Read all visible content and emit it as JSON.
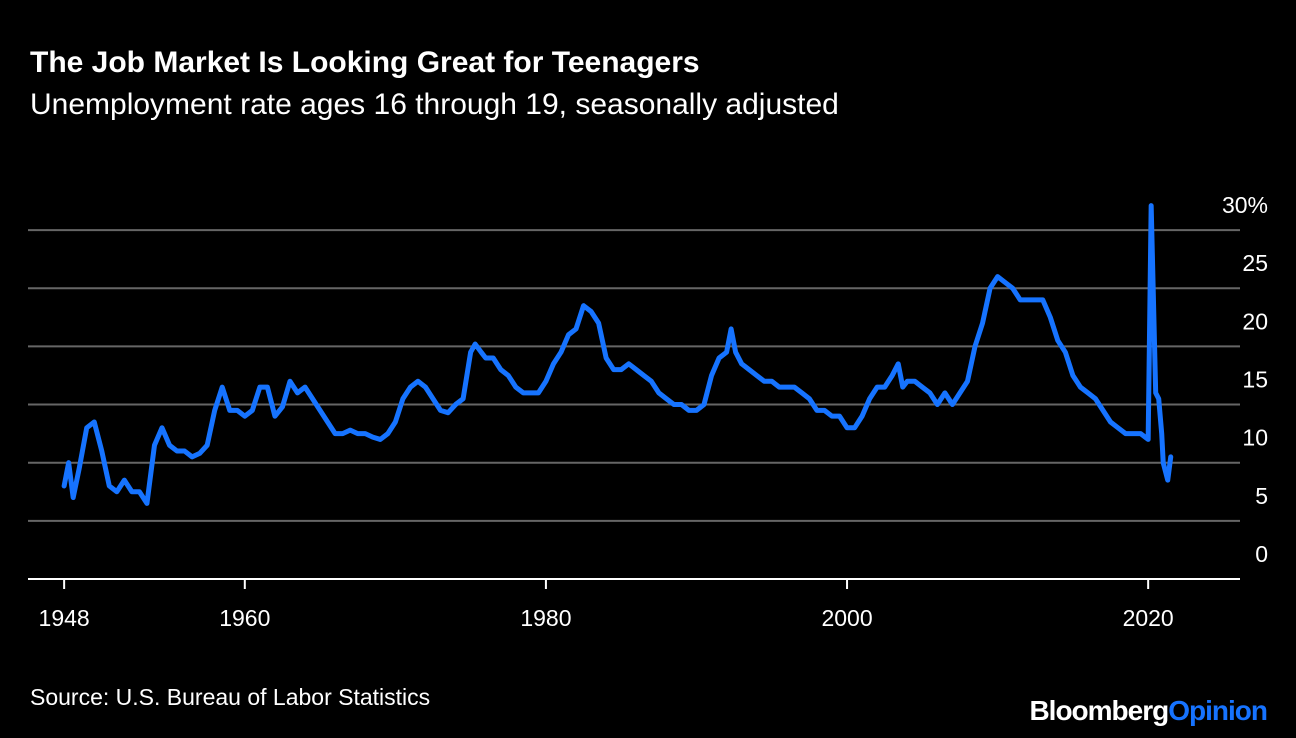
{
  "chart_data": {
    "type": "line",
    "title": "The Job Market Is Looking Great for Teenagers",
    "subtitle": "Unemployment rate ages 16 through 19, seasonally adjusted",
    "source": "Source: U.S. Bureau of Labor Statistics",
    "logo": {
      "brand": "Bloomberg",
      "section": "Opinion"
    },
    "color": "#1673ff",
    "grid": true,
    "xlim": [
      1945.6,
      2026.1
    ],
    "xticks": [
      1948,
      1960,
      1980,
      2000,
      2020
    ],
    "ylim": [
      0,
      32.5
    ],
    "yticks": [
      0,
      5,
      10,
      15,
      20,
      25,
      {
        "value": 30,
        "label": "30%"
      }
    ],
    "x": [
      1948.0,
      1948.3,
      1948.6,
      1949.0,
      1949.5,
      1950.0,
      1950.5,
      1951.0,
      1951.5,
      1952.0,
      1952.5,
      1953.0,
      1953.5,
      1954.0,
      1954.5,
      1955.0,
      1955.5,
      1956.0,
      1956.5,
      1957.0,
      1957.5,
      1958.0,
      1958.5,
      1959.0,
      1959.5,
      1960.0,
      1960.5,
      1961.0,
      1961.5,
      1962.0,
      1962.5,
      1963.0,
      1963.5,
      1964.0,
      1964.5,
      1965.0,
      1965.5,
      1966.0,
      1966.5,
      1967.0,
      1967.5,
      1968.0,
      1968.5,
      1969.0,
      1969.5,
      1970.0,
      1970.5,
      1971.0,
      1971.5,
      1972.0,
      1972.5,
      1973.0,
      1973.5,
      1974.0,
      1974.5,
      1975.0,
      1975.3,
      1975.7,
      1976.0,
      1976.5,
      1977.0,
      1977.5,
      1978.0,
      1978.5,
      1979.0,
      1979.5,
      1980.0,
      1980.5,
      1981.0,
      1981.5,
      1982.0,
      1982.5,
      1983.0,
      1983.5,
      1984.0,
      1984.5,
      1985.0,
      1985.5,
      1986.0,
      1986.5,
      1987.0,
      1987.5,
      1988.0,
      1988.5,
      1989.0,
      1989.5,
      1990.0,
      1990.5,
      1991.0,
      1991.5,
      1992.0,
      1992.3,
      1992.6,
      1993.0,
      1993.5,
      1994.0,
      1994.5,
      1995.0,
      1995.5,
      1996.0,
      1996.5,
      1997.0,
      1997.5,
      1998.0,
      1998.5,
      1999.0,
      1999.5,
      2000.0,
      2000.5,
      2001.0,
      2001.5,
      2002.0,
      2002.5,
      2003.0,
      2003.4,
      2003.7,
      2004.0,
      2004.5,
      2005.0,
      2005.5,
      2006.0,
      2006.5,
      2007.0,
      2007.5,
      2008.0,
      2008.5,
      2009.0,
      2009.5,
      2010.0,
      2010.5,
      2011.0,
      2011.5,
      2012.0,
      2012.5,
      2013.0,
      2013.5,
      2014.0,
      2014.5,
      2015.0,
      2015.5,
      2016.0,
      2016.5,
      2017.0,
      2017.5,
      2018.0,
      2018.5,
      2019.0,
      2019.5,
      2020.0,
      2020.2,
      2020.5,
      2020.7,
      2020.9,
      2021.0,
      2021.3,
      2021.5
    ],
    "values": [
      8.0,
      10.0,
      7.0,
      9.5,
      13.0,
      13.5,
      11.0,
      8.0,
      7.5,
      8.5,
      7.5,
      7.5,
      6.5,
      11.5,
      13.0,
      11.5,
      11.0,
      11.0,
      10.5,
      10.8,
      11.5,
      14.5,
      16.5,
      14.5,
      14.5,
      14.0,
      14.5,
      16.5,
      16.5,
      14.0,
      14.8,
      17.0,
      16.0,
      16.5,
      15.5,
      14.5,
      13.5,
      12.5,
      12.5,
      12.8,
      12.5,
      12.5,
      12.2,
      12.0,
      12.5,
      13.5,
      15.5,
      16.5,
      17.0,
      16.5,
      15.5,
      14.5,
      14.3,
      15.0,
      15.5,
      19.5,
      20.2,
      19.5,
      19.0,
      19.0,
      18.0,
      17.5,
      16.5,
      16.0,
      16.0,
      16.0,
      17.0,
      18.5,
      19.5,
      21.0,
      21.5,
      23.5,
      23.0,
      22.0,
      19.0,
      18.0,
      18.0,
      18.5,
      18.0,
      17.5,
      17.0,
      16.0,
      15.5,
      15.0,
      15.0,
      14.5,
      14.5,
      15.0,
      17.5,
      19.0,
      19.5,
      21.5,
      19.5,
      18.5,
      18.0,
      17.5,
      17.0,
      17.0,
      16.5,
      16.5,
      16.5,
      16.0,
      15.5,
      14.5,
      14.5,
      14.0,
      14.0,
      13.0,
      13.0,
      14.0,
      15.5,
      16.5,
      16.5,
      17.5,
      18.5,
      16.5,
      17.0,
      17.0,
      16.5,
      16.0,
      15.0,
      16.0,
      15.0,
      16.0,
      17.0,
      20.0,
      22.0,
      25.0,
      26.0,
      25.5,
      25.0,
      24.0,
      24.0,
      24.0,
      24.0,
      22.5,
      20.5,
      19.5,
      17.5,
      16.5,
      16.0,
      15.5,
      14.5,
      13.5,
      13.0,
      12.5,
      12.5,
      12.5,
      12.0,
      32.1,
      16.0,
      15.5,
      12.5,
      10.0,
      8.5,
      10.5
    ]
  }
}
